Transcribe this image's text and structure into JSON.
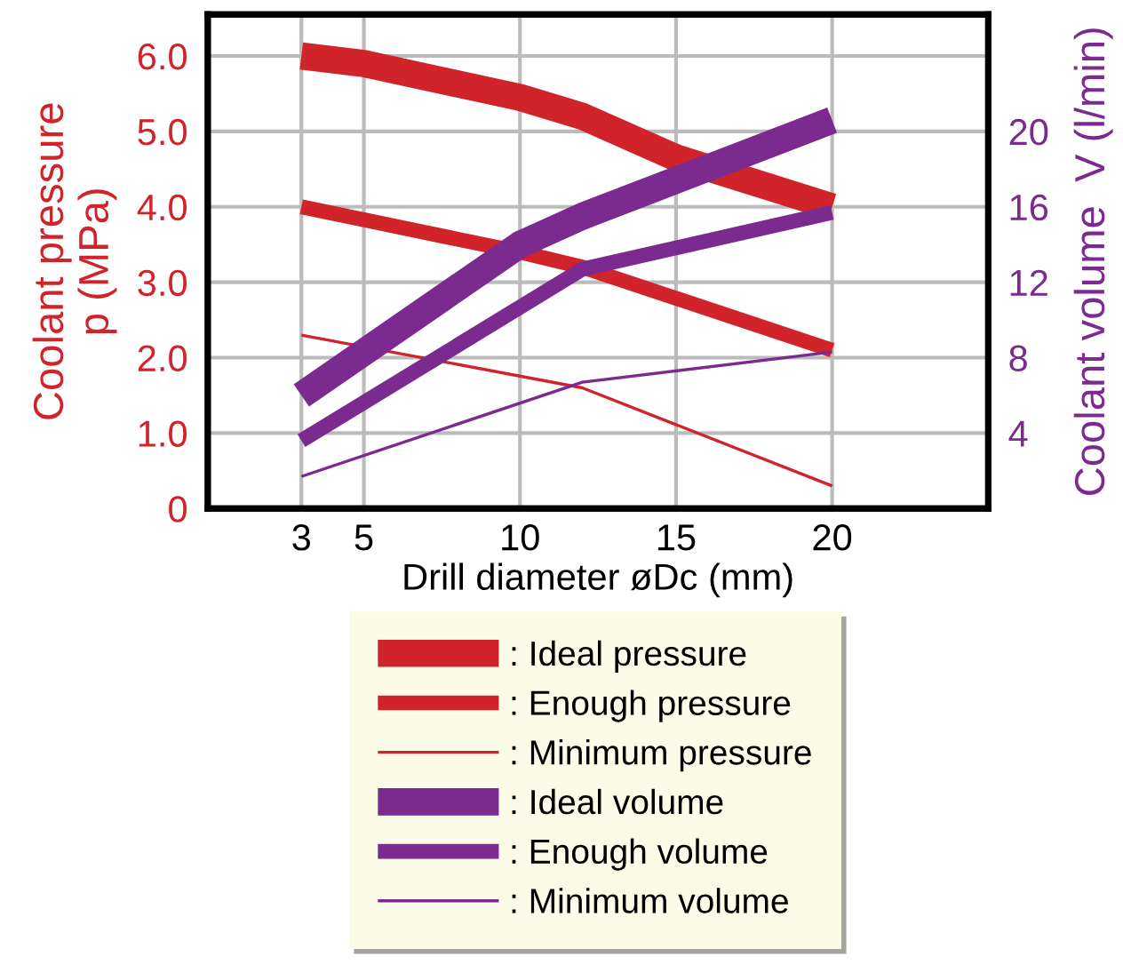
{
  "chart_data": {
    "type": "line",
    "xlabel": "Drill diameter øDc (mm)",
    "ylabel": "Coolant pressure\np (MPa)",
    "y2label": "Coolant volume  V (l/min)",
    "xlim": [
      0,
      25
    ],
    "xticks": [
      3,
      5,
      10,
      15,
      20
    ],
    "ylim": [
      0,
      6.55
    ],
    "yticks": [
      0,
      {
        "value": 1,
        "label": "1.0"
      },
      {
        "value": 2,
        "label": "2.0"
      },
      {
        "value": 3,
        "label": "3.0"
      },
      {
        "value": 4,
        "label": "4.0"
      },
      {
        "value": 5,
        "label": "5.0"
      },
      {
        "value": 6,
        "label": "6.0"
      }
    ],
    "y2lim": [
      0,
      26.2
    ],
    "y2ticks": [
      4,
      8,
      12,
      16,
      20
    ],
    "grid": true,
    "legend": "bottom",
    "line_style": "solid",
    "marker": "none",
    "series": [
      {
        "name": ": Ideal pressure",
        "color": "#d0232a",
        "x": [
          3,
          5,
          10,
          12,
          15,
          20
        ],
        "values": [
          6.0,
          5.9,
          5.45,
          5.2,
          4.65,
          4.0
        ]
      },
      {
        "name": ": Enough pressure",
        "color": "#d0232a",
        "x": [
          3,
          10,
          12,
          20
        ],
        "values": [
          4.0,
          3.4,
          3.2,
          2.1
        ]
      },
      {
        "name": ": Minimum pressure",
        "color": "#d0232a",
        "x": [
          3,
          12,
          20
        ],
        "values": [
          2.3,
          1.6,
          0.3
        ]
      },
      {
        "name": ": Ideal volume",
        "color": "#7b2a90",
        "axis": "y2",
        "x": [
          3,
          10,
          12,
          20
        ],
        "values": [
          6.0,
          14.0,
          15.5,
          20.6
        ]
      },
      {
        "name": ": Enough volume",
        "color": "#7b2a90",
        "axis": "y2",
        "x": [
          3,
          12,
          20
        ],
        "values": [
          3.6,
          12.7,
          15.7
        ]
      },
      {
        "name": ": Minimum volume",
        "color": "#7b2a90",
        "axis": "y2",
        "x": [
          3,
          12,
          20
        ],
        "values": [
          1.7,
          6.7,
          8.3
        ]
      }
    ]
  }
}
